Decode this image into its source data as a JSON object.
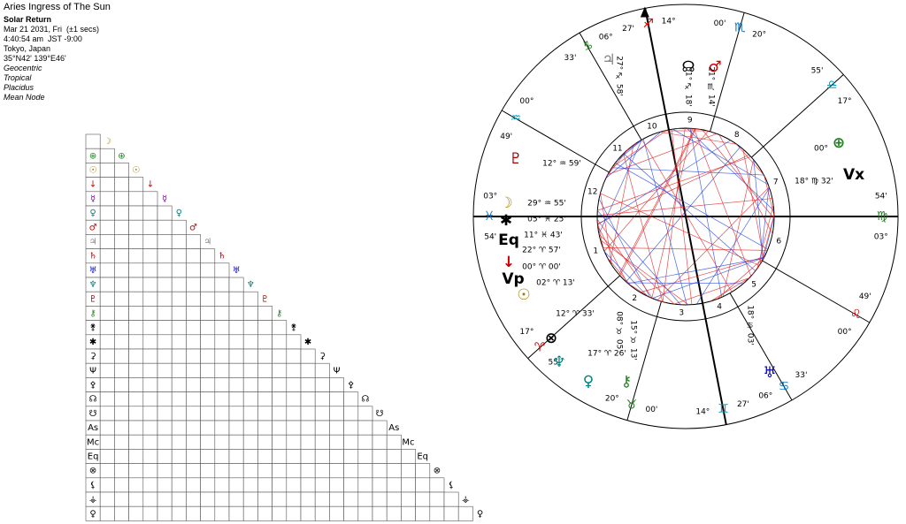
{
  "header": {
    "title": "Aries Ingress of The Sun",
    "subtitle": "Solar Return",
    "date": "Mar 21 2031, Fri  (±1 secs)",
    "time": "4:40:54 am  JST -9:00",
    "place": "Tokyo, Japan",
    "coords": "35°N42' 139°E46'",
    "settings": [
      "Geocentric",
      "Tropical",
      "Placidus",
      "Mean Node"
    ]
  },
  "aspect_grid": {
    "glyphs": [
      {
        "g": "☽",
        "color": "#b09000"
      },
      {
        "g": "⊕",
        "color": "#208020"
      },
      {
        "g": "☉",
        "color": "#a08000"
      },
      {
        "g": "↓",
        "color": "#d00000"
      },
      {
        "g": "☿",
        "color": "#8000a0"
      },
      {
        "g": "♀",
        "color": "#008080"
      },
      {
        "g": "♂",
        "color": "#d00000"
      },
      {
        "g": "♃",
        "color": "#808080"
      },
      {
        "g": "♄",
        "color": "#c00000"
      },
      {
        "g": "♅",
        "color": "#0000c0"
      },
      {
        "g": "♆",
        "color": "#008080"
      },
      {
        "g": "♇",
        "color": "#a00000"
      },
      {
        "g": "⚷",
        "color": "#208020"
      },
      {
        "g": "⚵",
        "color": "#000000"
      },
      {
        "g": "✱",
        "color": "#000000"
      },
      {
        "g": "⚳",
        "color": "#000000"
      },
      {
        "g": "Ψ",
        "color": "#000000"
      },
      {
        "g": "⚴",
        "color": "#000000"
      },
      {
        "g": "☊",
        "color": "#000000"
      },
      {
        "g": "☋",
        "color": "#000000"
      },
      {
        "g": "As",
        "color": "#000000"
      },
      {
        "g": "Mc",
        "color": "#000000"
      },
      {
        "g": "Eq",
        "color": "#000000"
      },
      {
        "g": "⊗",
        "color": "#000000"
      },
      {
        "g": "⚸",
        "color": "#000000"
      },
      {
        "g": "⚶",
        "color": "#000000"
      },
      {
        "g": "♀",
        "color": "#000000"
      }
    ]
  },
  "wheel": {
    "cusps": [
      {
        "deg": "03°",
        "sign": "♓",
        "min": "54'",
        "color": "#0070c0"
      },
      {
        "deg": "17°",
        "sign": "♈",
        "min": "55'",
        "color": "#d00000"
      },
      {
        "deg": "20°",
        "sign": "♉",
        "min": "00'",
        "color": "#208020"
      },
      {
        "deg": "14°",
        "sign": "♊",
        "min": "27'",
        "color": "#00a0c0"
      },
      {
        "deg": "06°",
        "sign": "♋",
        "min": "33'",
        "color": "#0070c0"
      },
      {
        "deg": "00°",
        "sign": "♌",
        "min": "49'",
        "color": "#d00000"
      },
      {
        "deg": "03°",
        "sign": "♍",
        "min": "54'",
        "color": "#208020"
      },
      {
        "deg": "17°",
        "sign": "♎",
        "min": "55'",
        "color": "#00a0c0"
      },
      {
        "deg": "20°",
        "sign": "♏",
        "min": "00'",
        "color": "#0070c0"
      },
      {
        "deg": "14°",
        "sign": "♐",
        "min": "27'",
        "color": "#d00000"
      },
      {
        "deg": "06°",
        "sign": "♑",
        "min": "33'",
        "color": "#208020"
      },
      {
        "deg": "00°",
        "sign": "♒",
        "min": "49'",
        "color": "#00a0c0"
      }
    ],
    "house_numbers": [
      "1",
      "2",
      "3",
      "4",
      "5",
      "6",
      "7",
      "8",
      "9",
      "10",
      "11",
      "12"
    ],
    "planets": [
      {
        "glyph": "☊",
        "position": "01° ♐ 18'",
        "color": "#000000"
      },
      {
        "glyph": "♂",
        "position": "21° ♏ 14'",
        "color": "#d00000"
      },
      {
        "glyph": "♃",
        "position": "27° ♐ 58'",
        "color": "#808080"
      },
      {
        "glyph": "♇",
        "position": "12° ♒ 59'",
        "color": "#a00000"
      },
      {
        "glyph": "⊕",
        "position": "00°",
        "color": "#208020"
      },
      {
        "glyph": "Vx",
        "position": "18° ♍ 32'",
        "color": "#000000"
      },
      {
        "glyph": "☽",
        "position": "29° ♒ 55'",
        "color": "#b09000"
      },
      {
        "glyph": "✱",
        "position": "05° ♓ 25'",
        "color": "#000000"
      },
      {
        "glyph": "Eq",
        "position": "11° ♓ 43'",
        "color": "#000000"
      },
      {
        "glyph": "↓",
        "position": "22° ♈ 57'",
        "color": "#d00000"
      },
      {
        "glyph": "Vp",
        "position": "00° ♈ 00'",
        "color": "#000000"
      },
      {
        "glyph": "☉",
        "position": "02° ♈ 13'",
        "color": "#a08000"
      },
      {
        "glyph": "⊗",
        "position": "12° ♈ 33'",
        "color": "#000000"
      },
      {
        "glyph": "♆",
        "position": "17° ♈ 26'",
        "color": "#008080"
      },
      {
        "glyph": "♀",
        "position": "08° ♉ 05'",
        "color": "#008080"
      },
      {
        "glyph": "⚷",
        "position": "15° ♉ 13'",
        "color": "#208020"
      },
      {
        "glyph": "♅",
        "position": "18° ♋ 03'",
        "color": "#0000c0"
      }
    ]
  }
}
